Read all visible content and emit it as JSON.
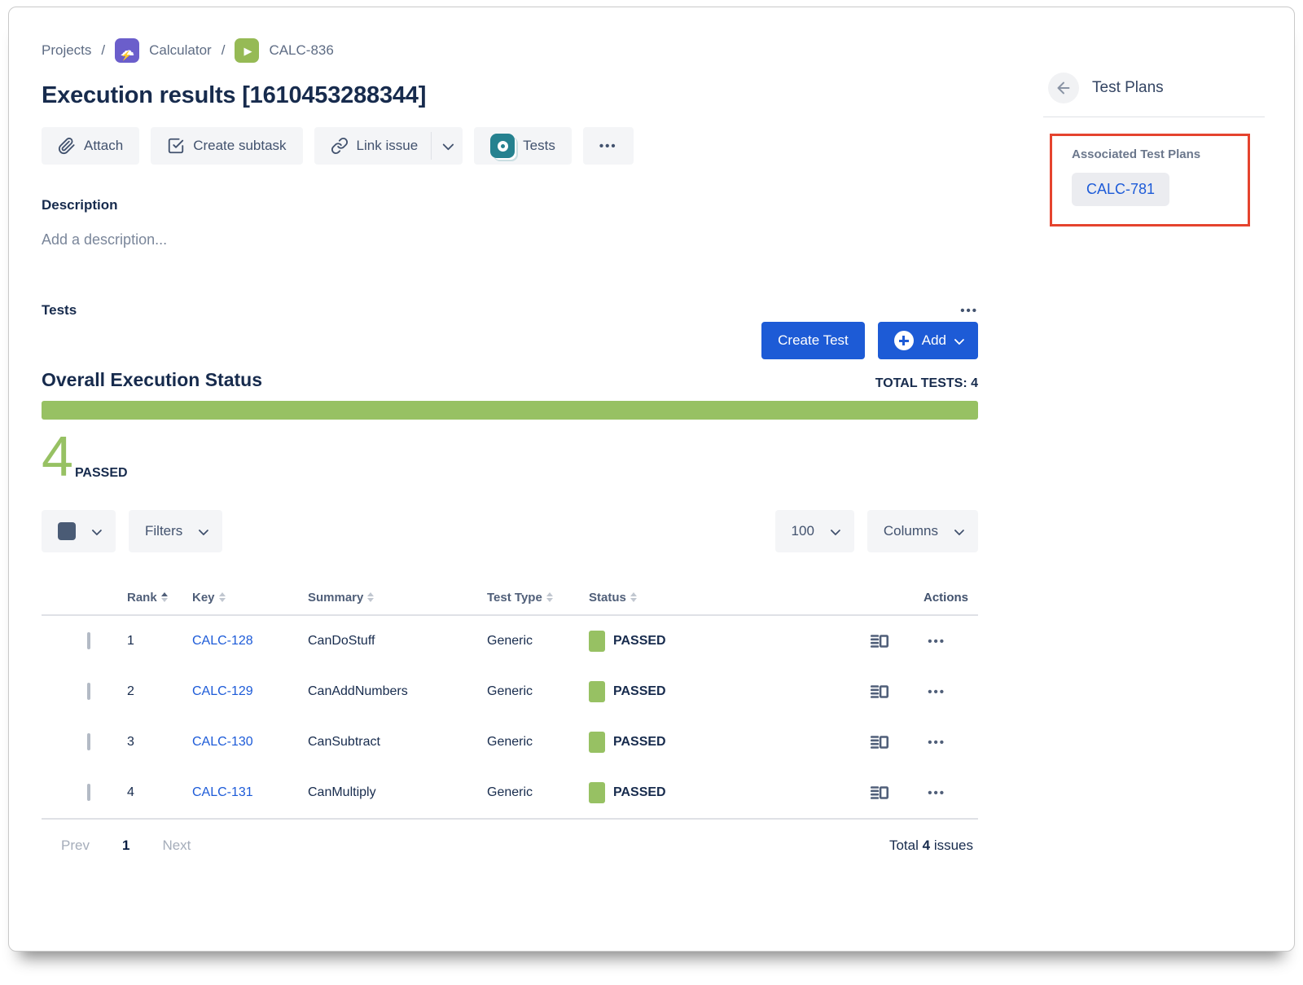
{
  "breadcrumb": {
    "separator": "/",
    "items": [
      {
        "label": "Projects"
      },
      {
        "label": "Calculator",
        "icon": "storm-cloud-project-icon"
      },
      {
        "label": "CALC-836",
        "icon": "test-execution-play-icon"
      }
    ]
  },
  "page_title": "Execution results [1610453288344]",
  "toolbar": {
    "attach_label": "Attach",
    "create_subtask_label": "Create subtask",
    "link_issue_label": "Link issue",
    "tests_label": "Tests"
  },
  "icons": {
    "ellipsis": "•••"
  },
  "description": {
    "heading": "Description",
    "placeholder": "Add a description..."
  },
  "tests_section": {
    "heading": "Tests",
    "create_test_label": "Create Test",
    "add_label": "Add",
    "overall_status_heading": "Overall Execution Status",
    "total_tests_text": "TOTAL TESTS: 4",
    "passed_count": "4",
    "passed_label": "PASSED",
    "progress_percent": 100
  },
  "filters_bar": {
    "filters_label": "Filters",
    "page_size": "100",
    "columns_label": "Columns"
  },
  "table": {
    "headers": [
      "Rank",
      "Key",
      "Summary",
      "Test Type",
      "Status",
      "Actions"
    ],
    "rows": [
      {
        "rank": "1",
        "key": "CALC-128",
        "summary": "CanDoStuff",
        "test_type": "Generic",
        "status": "PASSED"
      },
      {
        "rank": "2",
        "key": "CALC-129",
        "summary": "CanAddNumbers",
        "test_type": "Generic",
        "status": "PASSED"
      },
      {
        "rank": "3",
        "key": "CALC-130",
        "summary": "CanSubtract",
        "test_type": "Generic",
        "status": "PASSED"
      },
      {
        "rank": "4",
        "key": "CALC-131",
        "summary": "CanMultiply",
        "test_type": "Generic",
        "status": "PASSED"
      }
    ]
  },
  "pagination": {
    "prev_label": "Prev",
    "current_page": "1",
    "next_label": "Next",
    "total_prefix": "Total",
    "total_count": "4",
    "total_suffix": "issues"
  },
  "sidebar": {
    "heading": "Test Plans",
    "associated_heading": "Associated Test Plans",
    "test_plan_key": "CALC-781"
  },
  "colors": {
    "status_green": "#97C163",
    "primary_blue": "#1D5BD6",
    "link_blue": "#1D5BD8",
    "highlight_red": "#E5432E",
    "navy_text": "#172B4D"
  }
}
